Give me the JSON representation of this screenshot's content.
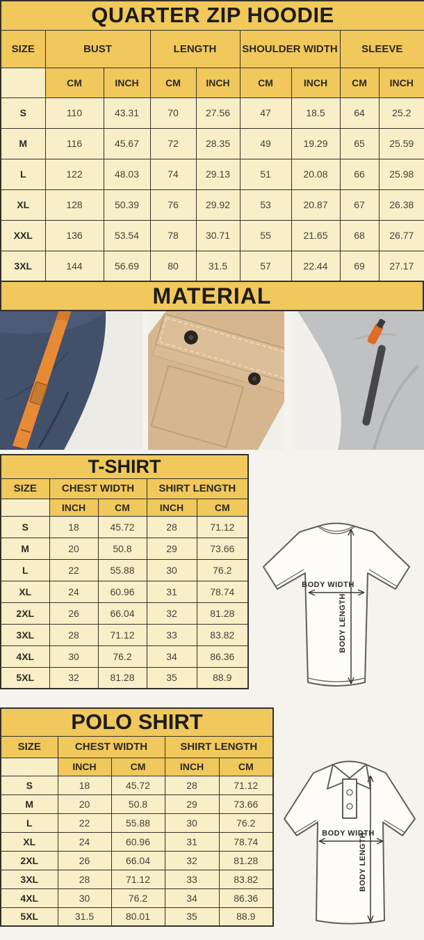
{
  "colors": {
    "gold": "#f0c85c",
    "cream": "#f8efc8",
    "table_border": "#35302a",
    "navy_fabric": "#42506a",
    "orange_drawstring": "#e78a36",
    "khaki_fabric": "#d5b68f",
    "gray_fabric": "#c0c1c3",
    "zipper_orange": "#e06a28"
  },
  "hoodie": {
    "title": "QUARTER ZIP HOODIE",
    "columns": [
      "SIZE",
      "BUST",
      "LENGTH",
      "SHOULDER WIDTH",
      "SLEEVE"
    ],
    "units": [
      "CM",
      "INCH",
      "CM",
      "INCH",
      "CM",
      "INCH",
      "CM",
      "INCH"
    ],
    "rows": [
      [
        "S",
        "110",
        "43.31",
        "70",
        "27.56",
        "47",
        "18.5",
        "64",
        "25.2"
      ],
      [
        "M",
        "116",
        "45.67",
        "72",
        "28.35",
        "49",
        "19.29",
        "65",
        "25.59"
      ],
      [
        "L",
        "122",
        "48.03",
        "74",
        "29.13",
        "51",
        "20.08",
        "66",
        "25.98"
      ],
      [
        "XL",
        "128",
        "50.39",
        "76",
        "29.92",
        "53",
        "20.87",
        "67",
        "26.38"
      ],
      [
        "XXL",
        "136",
        "53.54",
        "78",
        "30.71",
        "55",
        "21.65",
        "68",
        "26.77"
      ],
      [
        "3XL",
        "144",
        "56.69",
        "80",
        "31.5",
        "57",
        "22.44",
        "69",
        "27.17"
      ]
    ]
  },
  "material": {
    "title": "MATERIAL",
    "photos": [
      {
        "name": "navy fleece with orange drawstring"
      },
      {
        "name": "khaki flap pocket with snaps"
      },
      {
        "name": "gray fleece with zipper"
      }
    ]
  },
  "tshirt": {
    "title": "T-SHIRT",
    "columns": [
      "SIZE",
      "CHEST WIDTH",
      "SHIRT LENGTH"
    ],
    "units": [
      "INCH",
      "CM",
      "INCH",
      "CM"
    ],
    "rows": [
      [
        "S",
        "18",
        "45.72",
        "28",
        "71.12"
      ],
      [
        "M",
        "20",
        "50.8",
        "29",
        "73.66"
      ],
      [
        "L",
        "22",
        "55.88",
        "30",
        "76.2"
      ],
      [
        "XL",
        "24",
        "60.96",
        "31",
        "78.74"
      ],
      [
        "2XL",
        "26",
        "66.04",
        "32",
        "81.28"
      ],
      [
        "3XL",
        "28",
        "71.12",
        "33",
        "83.82"
      ],
      [
        "4XL",
        "30",
        "76.2",
        "34",
        "86.36"
      ],
      [
        "5XL",
        "32",
        "81.28",
        "35",
        "88.9"
      ]
    ],
    "diagram": {
      "width_label": "BODY WIDTH",
      "length_label": "BODY LENGTH"
    }
  },
  "polo": {
    "title": "POLO SHIRT",
    "columns": [
      "SIZE",
      "CHEST WIDTH",
      "SHIRT LENGTH"
    ],
    "units": [
      "INCH",
      "CM",
      "INCH",
      "CM"
    ],
    "rows": [
      [
        "S",
        "18",
        "45.72",
        "28",
        "71.12"
      ],
      [
        "M",
        "20",
        "50.8",
        "29",
        "73.66"
      ],
      [
        "L",
        "22",
        "55.88",
        "30",
        "76.2"
      ],
      [
        "XL",
        "24",
        "60.96",
        "31",
        "78.74"
      ],
      [
        "2XL",
        "26",
        "66.04",
        "32",
        "81.28"
      ],
      [
        "3XL",
        "28",
        "71.12",
        "33",
        "83.82"
      ],
      [
        "4XL",
        "30",
        "76.2",
        "34",
        "86.36"
      ],
      [
        "5XL",
        "31.5",
        "80.01",
        "35",
        "88.9"
      ]
    ],
    "diagram": {
      "width_label": "BODY WIDTH",
      "length_label": "BODY LENGTH"
    }
  }
}
